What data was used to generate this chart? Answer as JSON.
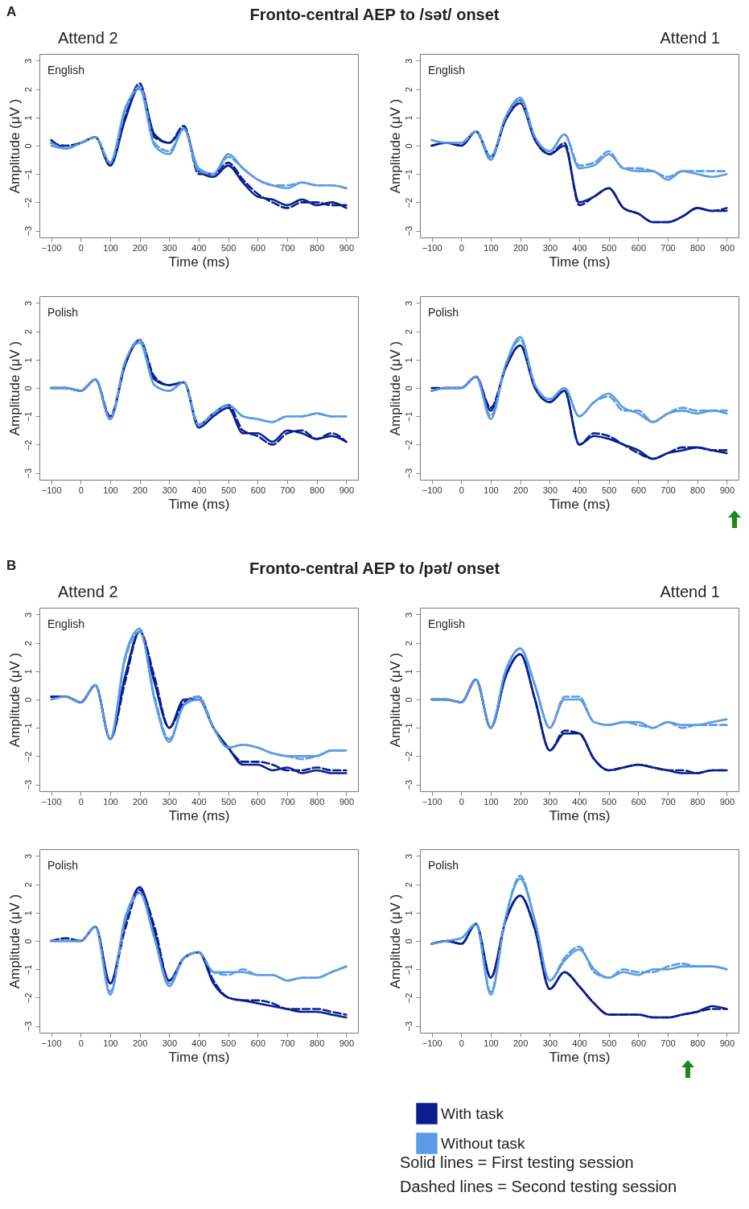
{
  "chart_data": [
    {
      "type": "line",
      "title": "English",
      "subtitle": "Attend 2",
      "annotations": [
        "A",
        "Fronto-central AEP to /sət/ onset"
      ],
      "xlabel": "Time (ms)",
      "ylabel": "Amplitude (μV )",
      "xlim": [
        -140,
        940
      ],
      "ylim": [
        -3.24,
        3.24
      ],
      "xticks": [
        -100,
        0,
        100,
        200,
        300,
        400,
        500,
        600,
        700,
        800,
        900
      ],
      "yticks": [
        -3,
        -2,
        -1,
        0,
        1,
        2,
        3
      ],
      "x": [
        -100,
        -50,
        0,
        50,
        100,
        150,
        200,
        250,
        300,
        350,
        400,
        450,
        500,
        550,
        600,
        650,
        700,
        750,
        800,
        850,
        900
      ],
      "series": [
        {
          "color": "#0a1f8f",
          "line_style": "solid",
          "values": [
            0.2,
            -0.1,
            0.1,
            0.3,
            -0.7,
            0.9,
            2.1,
            0.4,
            0.1,
            0.6,
            -0.9,
            -1.1,
            -0.7,
            -1.3,
            -1.8,
            -1.9,
            -2.1,
            -1.9,
            -2.1,
            -2.0,
            -2.2
          ]
        },
        {
          "color": "#0a1f8f",
          "line_style": "dashed",
          "values": [
            0.1,
            0.0,
            0.1,
            0.3,
            -0.7,
            1.0,
            2.2,
            0.3,
            0.1,
            0.7,
            -1.0,
            -1.0,
            -0.6,
            -1.2,
            -1.7,
            -2.0,
            -2.2,
            -2.0,
            -2.0,
            -2.1,
            -2.1
          ]
        },
        {
          "color": "#5b9be6",
          "line_style": "solid",
          "values": [
            0.0,
            -0.1,
            0.1,
            0.3,
            -0.6,
            1.3,
            2.0,
            0.0,
            -0.3,
            0.6,
            -0.8,
            -1.0,
            -0.3,
            -0.8,
            -1.2,
            -1.4,
            -1.5,
            -1.3,
            -1.4,
            -1.4,
            -1.5
          ]
        },
        {
          "color": "#5b9be6",
          "line_style": "dashed",
          "values": [
            0.1,
            -0.1,
            0.1,
            0.3,
            -0.6,
            1.2,
            2.1,
            0.1,
            -0.2,
            0.6,
            -0.9,
            -1.0,
            -0.4,
            -0.8,
            -1.2,
            -1.4,
            -1.4,
            -1.3,
            -1.4,
            -1.4,
            -1.5
          ]
        }
      ]
    },
    {
      "type": "line",
      "title": "English",
      "subtitle": "Attend 1",
      "xlabel": "Time (ms)",
      "ylabel": "Amplitude (μV )",
      "xlim": [
        -140,
        940
      ],
      "ylim": [
        -3.24,
        3.24
      ],
      "xticks": [
        -100,
        0,
        100,
        200,
        300,
        400,
        500,
        600,
        700,
        800,
        900
      ],
      "yticks": [
        -3,
        -2,
        -1,
        0,
        1,
        2,
        3
      ],
      "x": [
        -100,
        -50,
        0,
        50,
        100,
        150,
        200,
        250,
        300,
        350,
        400,
        450,
        500,
        550,
        600,
        650,
        700,
        750,
        800,
        850,
        900
      ],
      "series": [
        {
          "color": "#0a1f8f",
          "line_style": "solid",
          "values": [
            0.0,
            0.1,
            0.0,
            0.5,
            -0.4,
            0.9,
            1.5,
            0.2,
            -0.3,
            0.0,
            -2.0,
            -1.8,
            -1.5,
            -2.2,
            -2.4,
            -2.7,
            -2.7,
            -2.5,
            -2.2,
            -2.3,
            -2.3
          ]
        },
        {
          "color": "#0a1f8f",
          "line_style": "dashed",
          "values": [
            0.0,
            0.1,
            0.0,
            0.5,
            -0.4,
            0.9,
            1.6,
            0.2,
            -0.3,
            0.1,
            -2.1,
            -1.8,
            -1.5,
            -2.2,
            -2.4,
            -2.7,
            -2.7,
            -2.5,
            -2.2,
            -2.3,
            -2.2
          ]
        },
        {
          "color": "#5b9be6",
          "line_style": "solid",
          "values": [
            0.2,
            0.1,
            0.1,
            0.5,
            -0.5,
            1.0,
            1.7,
            0.3,
            -0.2,
            0.4,
            -0.8,
            -0.7,
            -0.3,
            -0.8,
            -0.9,
            -0.9,
            -1.2,
            -0.9,
            -1.0,
            -1.1,
            -1.0
          ]
        },
        {
          "color": "#5b9be6",
          "line_style": "dashed",
          "values": [
            0.2,
            0.1,
            0.1,
            0.5,
            -0.4,
            1.0,
            1.6,
            0.3,
            -0.2,
            0.4,
            -0.7,
            -0.6,
            -0.2,
            -0.8,
            -0.8,
            -0.9,
            -1.1,
            -0.9,
            -0.9,
            -0.9,
            -0.9
          ]
        }
      ]
    },
    {
      "type": "line",
      "title": "Polish",
      "xlabel": "Time (ms)",
      "ylabel": "Amplitude (μV )",
      "xlim": [
        -140,
        940
      ],
      "ylim": [
        -3.24,
        3.24
      ],
      "xticks": [
        -100,
        0,
        100,
        200,
        300,
        400,
        500,
        600,
        700,
        800,
        900
      ],
      "yticks": [
        -3,
        -2,
        -1,
        0,
        1,
        2,
        3
      ],
      "x": [
        -100,
        -50,
        0,
        50,
        100,
        150,
        200,
        250,
        300,
        350,
        400,
        450,
        500,
        550,
        600,
        650,
        700,
        750,
        800,
        850,
        900
      ],
      "series": [
        {
          "color": "#0a1f8f",
          "line_style": "solid",
          "values": [
            0.0,
            0.0,
            -0.1,
            0.3,
            -1.1,
            0.8,
            1.7,
            0.3,
            0.1,
            0.2,
            -1.4,
            -1.0,
            -0.7,
            -1.6,
            -1.6,
            -1.9,
            -1.5,
            -1.6,
            -1.8,
            -1.7,
            -1.9
          ]
        },
        {
          "color": "#0a1f8f",
          "line_style": "dashed",
          "values": [
            0.0,
            0.0,
            -0.1,
            0.3,
            -1.0,
            0.8,
            1.7,
            0.4,
            0.1,
            0.2,
            -1.3,
            -0.9,
            -0.6,
            -1.5,
            -1.7,
            -2.0,
            -1.6,
            -1.5,
            -1.8,
            -1.6,
            -1.9
          ]
        },
        {
          "color": "#5b9be6",
          "line_style": "solid",
          "values": [
            0.0,
            0.0,
            -0.1,
            0.3,
            -1.1,
            0.9,
            1.6,
            0.1,
            -0.1,
            0.2,
            -1.3,
            -0.9,
            -0.6,
            -1.0,
            -1.1,
            -1.2,
            -1.0,
            -1.0,
            -0.9,
            -1.0,
            -1.0
          ]
        },
        {
          "color": "#5b9be6",
          "line_style": "dashed",
          "values": [
            0.0,
            0.0,
            -0.1,
            0.3,
            -1.1,
            0.9,
            1.7,
            0.1,
            -0.1,
            0.2,
            -1.3,
            -0.9,
            -0.6,
            -1.0,
            -1.1,
            -1.2,
            -1.0,
            -1.0,
            -0.9,
            -1.0,
            -1.0
          ]
        }
      ]
    },
    {
      "type": "line",
      "title": "Polish",
      "xlabel": "Time (ms)",
      "ylabel": "Amplitude (μV )",
      "xlim": [
        -140,
        940
      ],
      "ylim": [
        -3.24,
        3.24
      ],
      "xticks": [
        -100,
        0,
        100,
        200,
        300,
        400,
        500,
        600,
        700,
        800,
        900
      ],
      "yticks": [
        -3,
        -2,
        -1,
        0,
        1,
        2,
        3
      ],
      "x": [
        -100,
        -50,
        0,
        50,
        100,
        150,
        200,
        250,
        300,
        350,
        400,
        450,
        500,
        550,
        600,
        650,
        700,
        750,
        800,
        850,
        900
      ],
      "series": [
        {
          "color": "#0a1f8f",
          "line_style": "solid",
          "values": [
            -0.1,
            0.0,
            0.0,
            0.4,
            -0.8,
            0.7,
            1.5,
            0.0,
            -0.5,
            -0.1,
            -2.0,
            -1.7,
            -1.8,
            -2.0,
            -2.2,
            -2.5,
            -2.3,
            -2.2,
            -2.1,
            -2.2,
            -2.3
          ]
        },
        {
          "color": "#0a1f8f",
          "line_style": "dashed",
          "values": [
            0.0,
            0.0,
            0.0,
            0.4,
            -0.7,
            0.7,
            1.5,
            0.0,
            -0.5,
            -0.1,
            -2.0,
            -1.6,
            -1.7,
            -2.0,
            -2.3,
            -2.5,
            -2.3,
            -2.1,
            -2.1,
            -2.2,
            -2.2
          ]
        },
        {
          "color": "#5b9be6",
          "line_style": "solid",
          "values": [
            -0.1,
            0.0,
            0.0,
            0.4,
            -1.1,
            0.8,
            1.8,
            0.1,
            -0.4,
            0.0,
            -1.0,
            -0.5,
            -0.2,
            -0.7,
            -0.9,
            -1.2,
            -0.9,
            -0.8,
            -0.9,
            -0.8,
            -0.9
          ]
        },
        {
          "color": "#5b9be6",
          "line_style": "dashed",
          "values": [
            -0.1,
            0.0,
            0.0,
            0.4,
            -1.0,
            0.8,
            1.7,
            0.1,
            -0.4,
            0.0,
            -1.0,
            -0.5,
            -0.3,
            -0.8,
            -0.8,
            -1.2,
            -0.9,
            -0.7,
            -0.8,
            -0.8,
            -0.8
          ]
        }
      ]
    },
    {
      "type": "line",
      "title": "English",
      "subtitle": "Attend 2",
      "annotations": [
        "B",
        "Fronto-central AEP to /pət/ onset"
      ],
      "xlabel": "Time (ms)",
      "ylabel": "Amplitude (μV )",
      "xlim": [
        -140,
        940
      ],
      "ylim": [
        -3.24,
        3.24
      ],
      "xticks": [
        -100,
        0,
        100,
        200,
        300,
        400,
        500,
        600,
        700,
        800,
        900
      ],
      "yticks": [
        -3,
        -2,
        -1,
        0,
        1,
        2,
        3
      ],
      "x": [
        -100,
        -50,
        0,
        50,
        100,
        150,
        200,
        250,
        300,
        350,
        400,
        450,
        500,
        550,
        600,
        650,
        700,
        750,
        800,
        850,
        900
      ],
      "series": [
        {
          "color": "#0a1f8f",
          "line_style": "solid",
          "values": [
            0.1,
            0.1,
            -0.1,
            0.5,
            -1.4,
            0.8,
            2.4,
            0.6,
            -1.0,
            0.0,
            0.0,
            -1.0,
            -1.7,
            -2.3,
            -2.3,
            -2.5,
            -2.4,
            -2.6,
            -2.5,
            -2.6,
            -2.6
          ]
        },
        {
          "color": "#0a1f8f",
          "line_style": "dashed",
          "values": [
            0.1,
            0.1,
            -0.1,
            0.5,
            -1.4,
            0.6,
            2.4,
            0.8,
            -1.0,
            -0.1,
            0.1,
            -1.0,
            -1.7,
            -2.2,
            -2.2,
            -2.3,
            -2.5,
            -2.5,
            -2.4,
            -2.5,
            -2.5
          ]
        },
        {
          "color": "#5b9be6",
          "line_style": "solid",
          "values": [
            0.0,
            0.1,
            -0.1,
            0.5,
            -1.4,
            1.5,
            2.5,
            0.0,
            -1.5,
            -0.2,
            0.0,
            -1.0,
            -1.7,
            -1.6,
            -1.7,
            -1.9,
            -2.0,
            -2.0,
            -2.0,
            -1.8,
            -1.8
          ]
        },
        {
          "color": "#5b9be6",
          "line_style": "dashed",
          "values": [
            0.0,
            0.1,
            -0.1,
            0.5,
            -1.4,
            1.4,
            2.4,
            0.1,
            -1.4,
            -0.2,
            0.1,
            -1.0,
            -1.7,
            -1.6,
            -1.7,
            -1.9,
            -2.0,
            -2.1,
            -2.0,
            -1.8,
            -1.8
          ]
        }
      ]
    },
    {
      "type": "line",
      "title": "English",
      "subtitle": "Attend 1",
      "xlabel": "Time (ms)",
      "ylabel": "Amplitude (μV )",
      "xlim": [
        -140,
        940
      ],
      "ylim": [
        -3.24,
        3.24
      ],
      "xticks": [
        -100,
        0,
        100,
        200,
        300,
        400,
        500,
        600,
        700,
        800,
        900
      ],
      "yticks": [
        -3,
        -2,
        -1,
        0,
        1,
        2,
        3
      ],
      "x": [
        -100,
        -50,
        0,
        50,
        100,
        150,
        200,
        250,
        300,
        350,
        400,
        450,
        500,
        550,
        600,
        650,
        700,
        750,
        800,
        850,
        900
      ],
      "series": [
        {
          "color": "#0a1f8f",
          "line_style": "solid",
          "values": [
            0.0,
            0.0,
            -0.1,
            0.7,
            -1.0,
            0.8,
            1.6,
            0.0,
            -1.8,
            -1.2,
            -1.2,
            -2.1,
            -2.5,
            -2.4,
            -2.3,
            -2.4,
            -2.5,
            -2.6,
            -2.6,
            -2.5,
            -2.5
          ]
        },
        {
          "color": "#0a1f8f",
          "line_style": "dashed",
          "values": [
            0.0,
            0.0,
            -0.1,
            0.7,
            -1.0,
            0.8,
            1.6,
            0.0,
            -1.8,
            -1.1,
            -1.2,
            -2.1,
            -2.5,
            -2.4,
            -2.3,
            -2.4,
            -2.5,
            -2.5,
            -2.6,
            -2.5,
            -2.5
          ]
        },
        {
          "color": "#5b9be6",
          "line_style": "solid",
          "values": [
            0.0,
            0.0,
            -0.1,
            0.7,
            -1.0,
            1.0,
            1.8,
            0.5,
            -1.0,
            0.0,
            0.0,
            -0.8,
            -0.9,
            -0.8,
            -0.8,
            -1.0,
            -0.8,
            -0.9,
            -0.9,
            -0.8,
            -0.7
          ]
        },
        {
          "color": "#5b9be6",
          "line_style": "dashed",
          "values": [
            0.0,
            0.0,
            -0.1,
            0.7,
            -1.0,
            1.0,
            1.8,
            0.5,
            -1.0,
            0.1,
            0.1,
            -0.8,
            -0.9,
            -0.8,
            -0.9,
            -1.0,
            -0.8,
            -1.0,
            -0.9,
            -0.9,
            -0.9
          ]
        }
      ]
    },
    {
      "type": "line",
      "title": "Polish",
      "xlabel": "Time (ms)",
      "ylabel": "Amplitude (μV )",
      "xlim": [
        -140,
        940
      ],
      "ylim": [
        -3.24,
        3.24
      ],
      "xticks": [
        -100,
        0,
        100,
        200,
        300,
        400,
        500,
        600,
        700,
        800,
        900
      ],
      "yticks": [
        -3,
        -2,
        -1,
        0,
        1,
        2,
        3
      ],
      "x": [
        -100,
        -50,
        0,
        50,
        100,
        150,
        200,
        250,
        300,
        350,
        400,
        450,
        500,
        550,
        600,
        650,
        700,
        750,
        800,
        850,
        900
      ],
      "series": [
        {
          "color": "#0a1f8f",
          "line_style": "solid",
          "values": [
            0.0,
            0.0,
            0.0,
            0.5,
            -1.5,
            0.6,
            1.9,
            0.3,
            -1.4,
            -0.6,
            -0.4,
            -1.5,
            -2.0,
            -2.1,
            -2.2,
            -2.3,
            -2.4,
            -2.5,
            -2.5,
            -2.6,
            -2.7
          ]
        },
        {
          "color": "#0a1f8f",
          "line_style": "dashed",
          "values": [
            0.0,
            0.1,
            0.0,
            0.5,
            -1.5,
            0.4,
            1.8,
            0.5,
            -1.4,
            -0.6,
            -0.4,
            -1.4,
            -2.0,
            -2.1,
            -2.1,
            -2.2,
            -2.4,
            -2.4,
            -2.4,
            -2.5,
            -2.6
          ]
        },
        {
          "color": "#5b9be6",
          "line_style": "solid",
          "values": [
            0.0,
            0.0,
            0.0,
            0.5,
            -1.9,
            0.8,
            1.7,
            0.1,
            -1.6,
            -0.6,
            -0.4,
            -1.1,
            -1.1,
            -1.1,
            -1.2,
            -1.2,
            -1.4,
            -1.3,
            -1.3,
            -1.1,
            -0.9
          ]
        },
        {
          "color": "#5b9be6",
          "line_style": "dashed",
          "values": [
            0.0,
            0.0,
            0.0,
            0.5,
            -1.8,
            0.7,
            1.7,
            0.1,
            -1.5,
            -0.6,
            -0.4,
            -1.1,
            -1.2,
            -1.0,
            -1.2,
            -1.2,
            -1.4,
            -1.3,
            -1.3,
            -1.1,
            -0.9
          ]
        }
      ]
    },
    {
      "type": "line",
      "title": "Polish",
      "annotations": [
        "Solid lines = First testing session",
        "Dashed lines = Second testing session"
      ],
      "legend": "bottom",
      "xlabel": "Time (ms)",
      "ylabel": "Amplitude (μV )",
      "xlim": [
        -140,
        940
      ],
      "ylim": [
        -3.24,
        3.24
      ],
      "xticks": [
        -100,
        0,
        100,
        200,
        300,
        400,
        500,
        600,
        700,
        800,
        900
      ],
      "yticks": [
        -3,
        -2,
        -1,
        0,
        1,
        2,
        3
      ],
      "x": [
        -100,
        -50,
        0,
        50,
        100,
        150,
        200,
        250,
        300,
        350,
        400,
        450,
        500,
        550,
        600,
        650,
        700,
        750,
        800,
        850,
        900
      ],
      "series": [
        {
          "name": "With task",
          "color": "#0a1f8f",
          "line_style": "solid",
          "values": [
            -0.1,
            0.0,
            -0.1,
            0.6,
            -1.3,
            0.7,
            1.6,
            0.4,
            -1.7,
            -1.1,
            -1.6,
            -2.2,
            -2.6,
            -2.6,
            -2.6,
            -2.7,
            -2.7,
            -2.6,
            -2.5,
            -2.3,
            -2.4
          ]
        },
        {
          "color": "#0a1f8f",
          "line_style": "dashed",
          "values": [
            -0.1,
            0.0,
            -0.1,
            0.6,
            -1.3,
            0.7,
            1.6,
            0.4,
            -1.7,
            -1.1,
            -1.6,
            -2.2,
            -2.6,
            -2.6,
            -2.6,
            -2.7,
            -2.7,
            -2.6,
            -2.5,
            -2.4,
            -2.4
          ]
        },
        {
          "name": "Without task",
          "color": "#5b9be6",
          "line_style": "solid",
          "values": [
            -0.1,
            0.0,
            0.1,
            0.6,
            -1.9,
            0.8,
            2.2,
            0.7,
            -1.4,
            -0.7,
            -0.3,
            -1.0,
            -1.3,
            -1.1,
            -1.2,
            -1.0,
            -1.0,
            -0.9,
            -0.9,
            -0.9,
            -1.0
          ]
        },
        {
          "color": "#5b9be6",
          "line_style": "dashed",
          "values": [
            -0.1,
            0.0,
            0.1,
            0.6,
            -1.8,
            0.8,
            2.3,
            0.7,
            -1.4,
            -0.6,
            -0.2,
            -1.1,
            -1.3,
            -1.0,
            -1.1,
            -1.1,
            -0.9,
            -0.8,
            -0.9,
            -0.9,
            -1.0
          ]
        }
      ]
    }
  ]
}
